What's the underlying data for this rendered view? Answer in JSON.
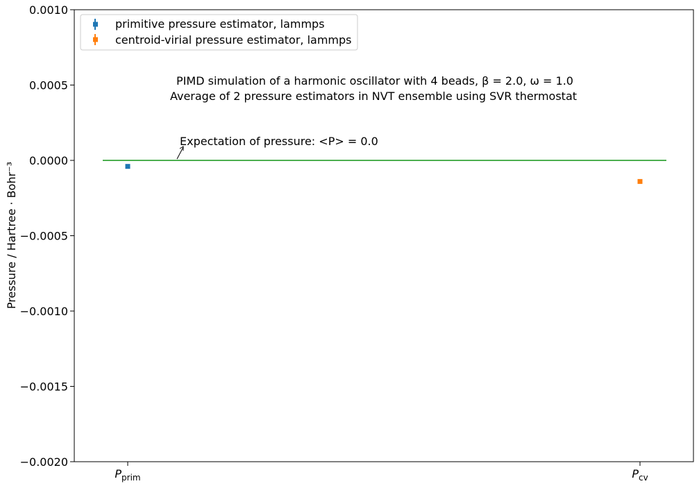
{
  "chart_data": {
    "type": "scatter",
    "title_lines": [
      "PIMD simulation of a harmonic oscillator with 4 beads, β = 2.0, ω = 1.0",
      "Average of 2 pressure estimators in NVT ensemble using SVR thermostat"
    ],
    "ylabel": "Pressure / Hartree · Bohr⁻³",
    "ylim": [
      -0.002,
      0.001
    ],
    "yticks": [
      0.001,
      0.0005,
      0.0,
      -0.0005,
      -0.001,
      -0.0015,
      -0.002
    ],
    "ytick_labels": [
      "0.0010",
      "0.0005",
      "0.0000",
      "−0.0005",
      "−0.0010",
      "−0.0015",
      "−0.0020"
    ],
    "categories": [
      {
        "base": "P",
        "sub": "prim"
      },
      {
        "base": "P",
        "sub": "cv"
      }
    ],
    "series": [
      {
        "name": "primitive pressure estimator, lammps",
        "category": 0,
        "value": -4e-05,
        "err": 8e-06,
        "color": "#1f77b4"
      },
      {
        "name": "centroid-virial pressure estimator, lammps",
        "category": 1,
        "value": -0.00014,
        "err": 1.2e-05,
        "color": "#ff7f0e"
      }
    ],
    "reference_line": {
      "value": 0.0,
      "color": "#4caf50"
    },
    "annotation": "Expectation of pressure: <P> = 0.0",
    "legend_position": "top-left",
    "grid": false
  }
}
